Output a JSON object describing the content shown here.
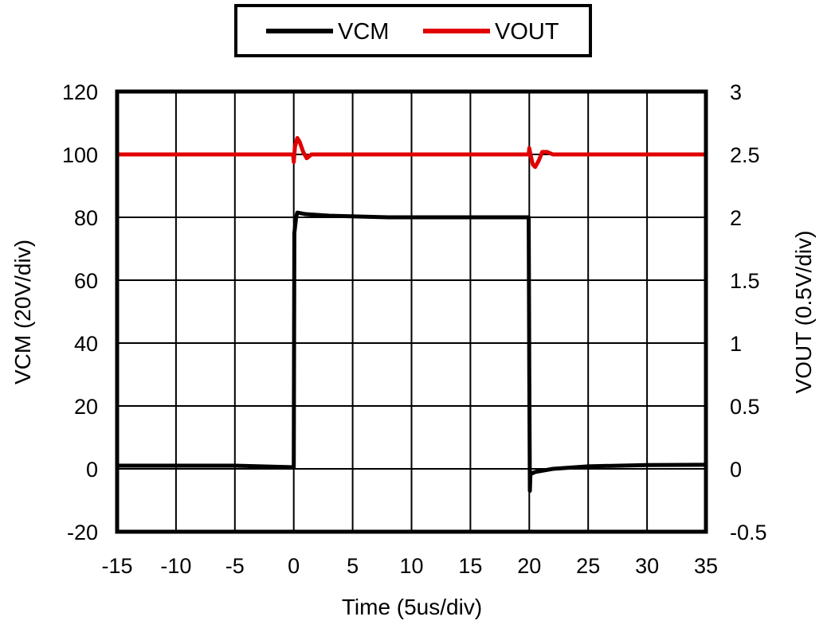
{
  "chart_data": {
    "type": "line",
    "xlabel": "Time (5us/div)",
    "ylabel": "VCM (20V/div)",
    "y2label": "VOUT (0.5V/div)",
    "xlim": [
      -15,
      35
    ],
    "ylim": [
      -20,
      120
    ],
    "y2lim": [
      -0.5,
      3
    ],
    "x_ticks": [
      "-15",
      "-10",
      "-5",
      "0",
      "5",
      "10",
      "15",
      "20",
      "25",
      "30",
      "35"
    ],
    "y_ticks": [
      "-20",
      "0",
      "20",
      "40",
      "60",
      "80",
      "100",
      "120"
    ],
    "y2_ticks": [
      "-0.5",
      "0",
      "0.5",
      "1",
      "1.5",
      "2",
      "2.5",
      "3"
    ],
    "grid": true,
    "legend_position": "top-center",
    "series": [
      {
        "name": "VCM",
        "axis": "left",
        "color": "#000000",
        "x": [
          -15,
          -5,
          0,
          0.05,
          0.2,
          0.3,
          1,
          3,
          8,
          15,
          19.95,
          20,
          20.05,
          20.1,
          20.2,
          20.5,
          22,
          25,
          30,
          35
        ],
        "y": [
          1,
          1,
          0.5,
          75,
          80,
          81.5,
          81,
          80.5,
          80,
          80,
          80,
          30,
          -7,
          -1,
          -1.5,
          -1,
          0,
          0.8,
          1.2,
          1.3
        ]
      },
      {
        "name": "VOUT",
        "axis": "right",
        "color": "#e00000",
        "x": [
          -15,
          -5,
          -0.05,
          0,
          0.1,
          0.3,
          0.5,
          0.8,
          1.1,
          1.5,
          2,
          5,
          10,
          15,
          19.95,
          20,
          20.1,
          20.3,
          20.5,
          20.8,
          21.1,
          21.5,
          22,
          25,
          30,
          35
        ],
        "y": [
          2.5,
          2.5,
          2.5,
          2.44,
          2.56,
          2.63,
          2.6,
          2.52,
          2.47,
          2.5,
          2.5,
          2.5,
          2.5,
          2.5,
          2.5,
          2.55,
          2.5,
          2.42,
          2.4,
          2.45,
          2.52,
          2.52,
          2.5,
          2.5,
          2.5,
          2.5
        ]
      }
    ]
  }
}
